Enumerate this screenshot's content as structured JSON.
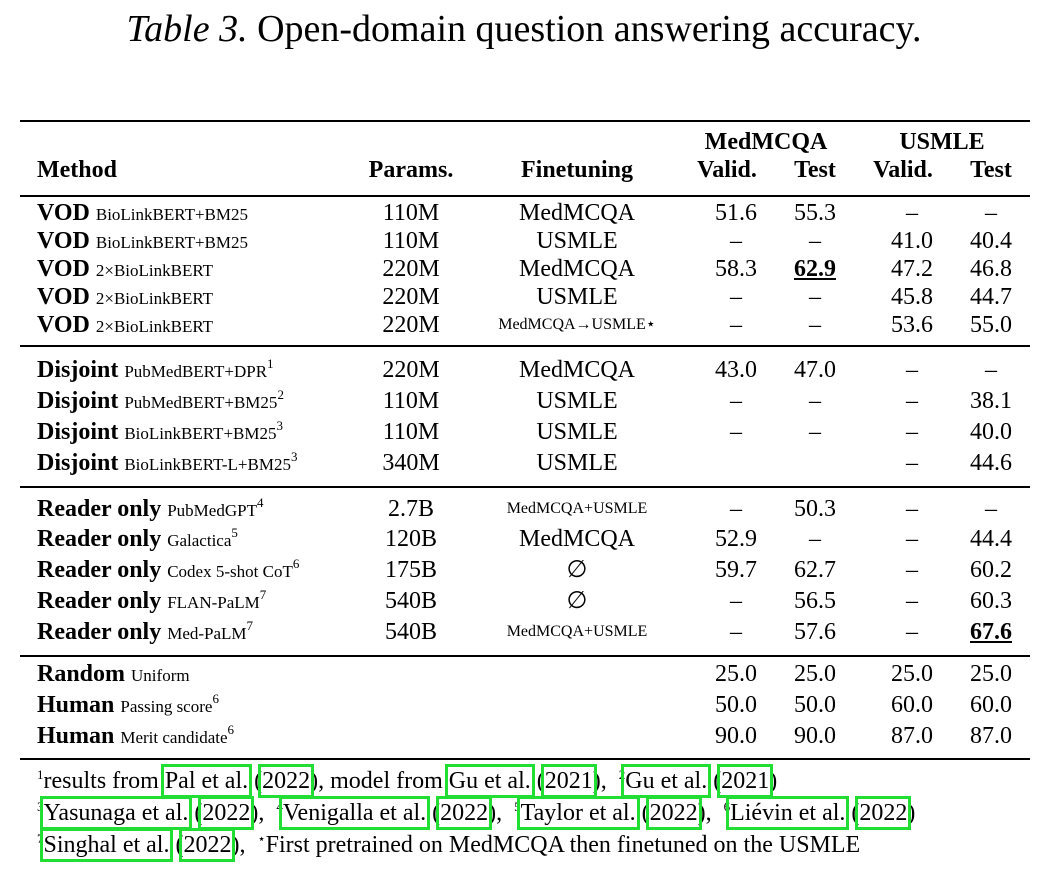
{
  "caption": {
    "label": "Table 3.",
    "text": "Open-domain question answering accuracy."
  },
  "header": {
    "group_medmcqa": "MedMCQA",
    "group_usmle": "USMLE",
    "method": "Method",
    "params": "Params.",
    "finetuning": "Finetuning",
    "valid1": "Valid.",
    "test1": "Test",
    "valid2": "Valid.",
    "test2": "Test"
  },
  "rows": [
    {
      "name": "VOD",
      "sub": "BioLinkBERT+BM25",
      "sup": "",
      "params": "110M",
      "ft": "MedMCQA",
      "ft_small": false,
      "mv": "51.6",
      "mt": "55.3",
      "uv": "–",
      "ut": "–"
    },
    {
      "name": "VOD",
      "sub": "BioLinkBERT+BM25",
      "sup": "",
      "params": "110M",
      "ft": "USMLE",
      "ft_small": false,
      "mv": "–",
      "mt": "–",
      "uv": "41.0",
      "ut": "40.4"
    },
    {
      "name": "VOD",
      "sub": "2×BioLinkBERT",
      "sup": "",
      "params": "220M",
      "ft": "MedMCQA",
      "ft_small": false,
      "mv": "58.3",
      "mt": "62.9",
      "uv": "47.2",
      "ut": "46.8"
    },
    {
      "name": "VOD",
      "sub": "2×BioLinkBERT",
      "sup": "",
      "params": "220M",
      "ft": "USMLE",
      "ft_small": false,
      "mv": "–",
      "mt": "–",
      "uv": "45.8",
      "ut": "44.7"
    },
    {
      "name": "VOD",
      "sub": "2×BioLinkBERT",
      "sup": "",
      "params": "220M",
      "ft": "MedMCQA→USMLE⋆",
      "ft_small": true,
      "mv": "–",
      "mt": "–",
      "uv": "53.6",
      "ut": "55.0"
    },
    {
      "name": "Disjoint",
      "sub": "PubMedBERT+DPR",
      "sup": "1",
      "params": "220M",
      "ft": "MedMCQA",
      "ft_small": false,
      "mv": "43.0",
      "mt": "47.0",
      "uv": "–",
      "ut": "–"
    },
    {
      "name": "Disjoint",
      "sub": "PubMedBERT+BM25",
      "sup": "2",
      "params": "110M",
      "ft": "USMLE",
      "ft_small": false,
      "mv": "–",
      "mt": "–",
      "uv": "–",
      "ut": "38.1"
    },
    {
      "name": "Disjoint",
      "sub": "BioLinkBERT+BM25",
      "sup": "3",
      "params": "110M",
      "ft": "USMLE",
      "ft_small": false,
      "mv": "–",
      "mt": "–",
      "uv": "–",
      "ut": "40.0"
    },
    {
      "name": "Disjoint",
      "sub": "BioLinkBERT-L+BM25",
      "sup": "3",
      "params": "340M",
      "ft": "USMLE",
      "ft_small": false,
      "mv": "",
      "mt": "",
      "uv": "–",
      "ut": "44.6"
    },
    {
      "name": "Reader only",
      "sub": "PubMedGPT",
      "sup": "4",
      "params": "2.7B",
      "ft": "MedMCQA+USMLE",
      "ft_small": true,
      "mv": "–",
      "mt": "50.3",
      "uv": "–",
      "ut": "–"
    },
    {
      "name": "Reader only",
      "sub": "Galactica",
      "sup": "5",
      "params": "120B",
      "ft": "MedMCQA",
      "ft_small": false,
      "mv": "52.9",
      "mt": "–",
      "uv": "–",
      "ut": "44.4"
    },
    {
      "name": "Reader only",
      "sub": "Codex 5-shot CoT",
      "sup": "6",
      "params": "175B",
      "ft": "∅",
      "ft_small": false,
      "mv": "59.7",
      "mt": "62.7",
      "uv": "–",
      "ut": "60.2"
    },
    {
      "name": "Reader only",
      "sub": "FLAN-PaLM",
      "sup": "7",
      "params": "540B",
      "ft": "∅",
      "ft_small": false,
      "mv": "–",
      "mt": "56.5",
      "uv": "–",
      "ut": "60.3"
    },
    {
      "name": "Reader only",
      "sub": "Med-PaLM",
      "sup": "7",
      "params": "540B",
      "ft": "MedMCQA+USMLE",
      "ft_small": true,
      "mv": "–",
      "mt": "57.6",
      "uv": "–",
      "ut": "67.6"
    },
    {
      "name": "Random",
      "sub": "Uniform",
      "sup": "",
      "params": "",
      "ft": "",
      "ft_small": false,
      "mv": "25.0",
      "mt": "25.0",
      "uv": "25.0",
      "ut": "25.0"
    },
    {
      "name": "Human",
      "sub": "Passing score",
      "sup": "6",
      "params": "",
      "ft": "",
      "ft_small": false,
      "mv": "50.0",
      "mt": "50.0",
      "uv": "60.0",
      "ut": "60.0"
    },
    {
      "name": "Human",
      "sub": "Merit candidate",
      "sup": "6",
      "params": "",
      "ft": "",
      "ft_small": false,
      "mv": "90.0",
      "mt": "90.0",
      "uv": "87.0",
      "ut": "87.0"
    }
  ],
  "best": {
    "medmcqa_test": "62.9",
    "usmle_test": "67.6"
  },
  "footnotes": {
    "n1_pre": "results from ",
    "n1_a": "Pal et al.",
    "n1_a_year": "2022",
    "n1_mid": ", model from ",
    "n1_b": "Gu et al.",
    "n1_b_year": "2021",
    "n2_a": "Gu et al.",
    "n2_a_year": "2021",
    "n3_a": "Yasunaga et al.",
    "n3_a_year": "2022",
    "n4_a": "Venigalla et al.",
    "n4_a_year": "2022",
    "n5_a": "Taylor et al.",
    "n5_a_year": "2022",
    "n6_a": "Liévin et al.",
    "n6_a_year": "2022",
    "n7_a": "Singhal et al.",
    "n7_a_year": "2022",
    "star_note": "First pretrained on MedMCQA then finetuned on the USMLE"
  },
  "highlight_color": "#22dd33"
}
